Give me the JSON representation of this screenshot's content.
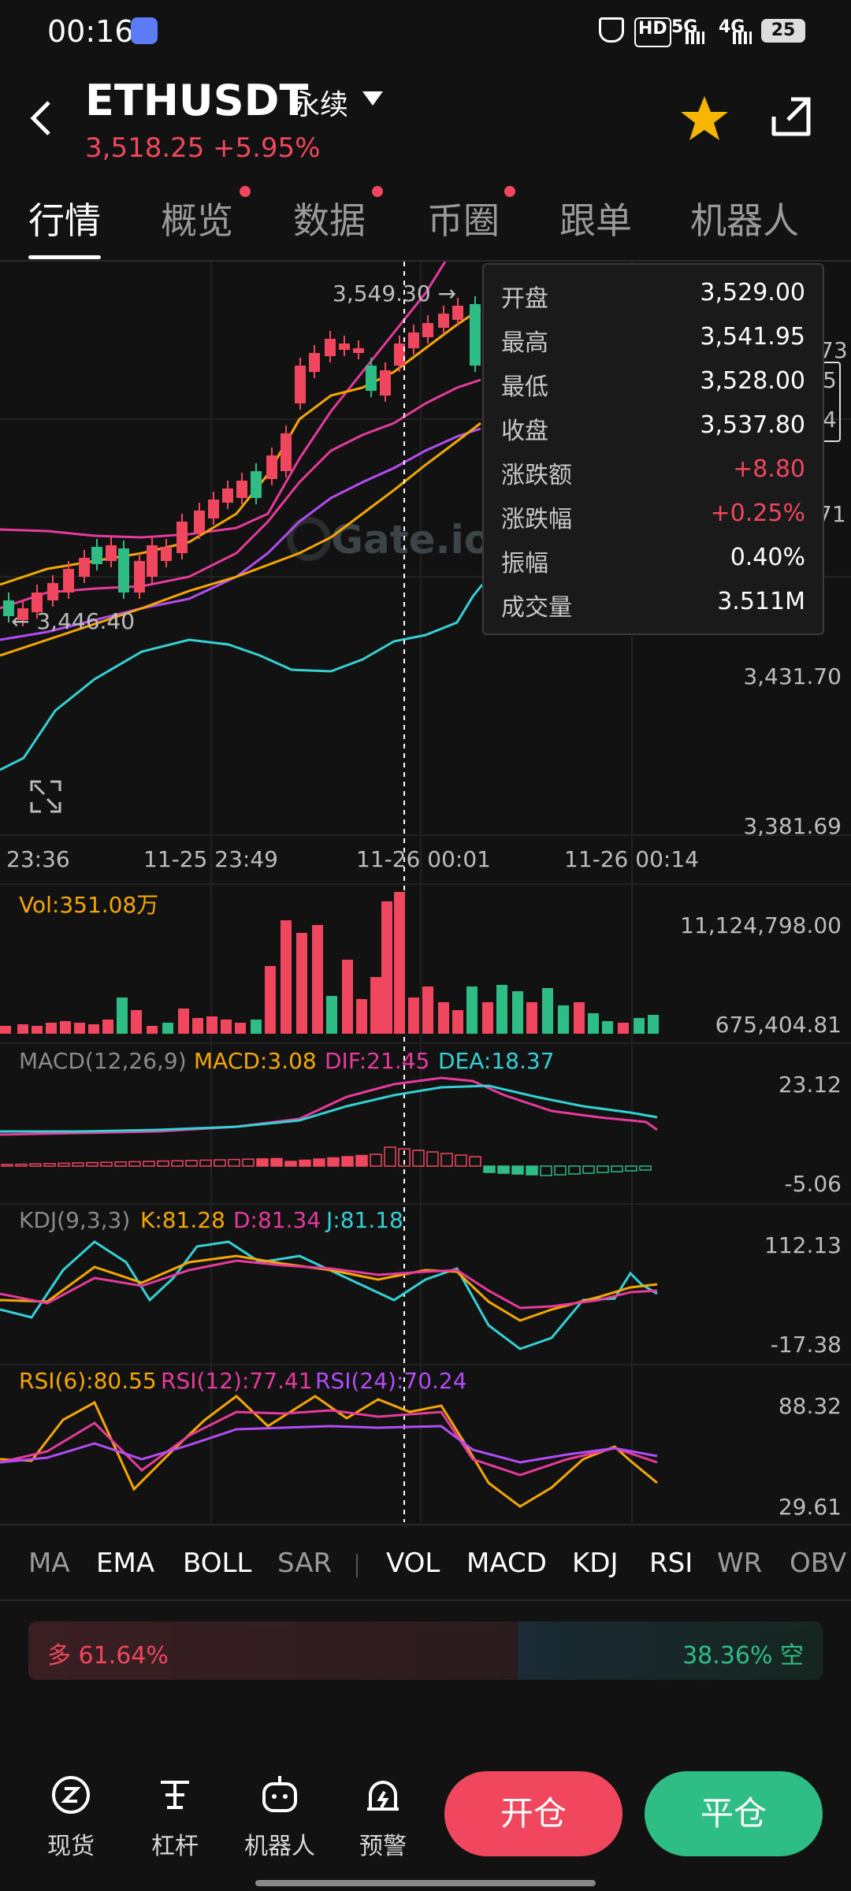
{
  "status_bar": {
    "time": "00:16",
    "battery": "25",
    "net_5g": "5G",
    "net_4g": "4G",
    "hd": "HD"
  },
  "header": {
    "symbol": "ETHUSDT",
    "contract": "永续",
    "price": "3,518.25",
    "change_pct": "+5.95%"
  },
  "tabs": [
    {
      "label": "行情",
      "active": true
    },
    {
      "label": "概览",
      "dot": true
    },
    {
      "label": "数据",
      "dot": true
    },
    {
      "label": "币圈",
      "dot": true
    },
    {
      "label": "跟单"
    },
    {
      "label": "机器人"
    }
  ],
  "main_chart": {
    "high_marker": "3,549.30 →",
    "low_marker": "← 3,446.40",
    "watermark": "Gate.io",
    "price_axis": [
      "3,431.70",
      "3,381.69"
    ],
    "right_partials": [
      "73",
      "5",
      "4",
      "71"
    ],
    "time_labels": [
      "23:36",
      "11-25 23:49",
      "11-26 00:01",
      "11-26 00:14"
    ]
  },
  "tooltip": {
    "rows": [
      {
        "k": "开盘",
        "v": "3,529.00"
      },
      {
        "k": "最高",
        "v": "3,541.95"
      },
      {
        "k": "最低",
        "v": "3,528.00"
      },
      {
        "k": "收盘",
        "v": "3,537.80"
      },
      {
        "k": "涨跌额",
        "v": "+8.80",
        "red": true
      },
      {
        "k": "涨跌幅",
        "v": "+0.25%",
        "red": true
      },
      {
        "k": "振幅",
        "v": "0.40%"
      },
      {
        "k": "成交量",
        "v": "3.511M"
      }
    ]
  },
  "vol": {
    "label": "Vol:351.08万",
    "max": "11,124,798.00",
    "min": "675,404.81"
  },
  "macd": {
    "label": "MACD(12,26,9)",
    "macd": "MACD:3.08",
    "dif": "DIF:21.45",
    "dea": "DEA:18.37",
    "max": "23.12",
    "min": "-5.06"
  },
  "kdj": {
    "label": "KDJ(9,3,3)",
    "k": "K:81.28",
    "d": "D:81.34",
    "j": "J:81.18",
    "max": "112.13",
    "min": "-17.38"
  },
  "rsi": {
    "r6": "RSI(6):80.55",
    "r12": "RSI(12):77.41",
    "r24": "RSI(24):70.24",
    "max": "88.32",
    "min": "29.61"
  },
  "indicators": [
    {
      "label": "MA",
      "dim": true
    },
    {
      "label": "EMA"
    },
    {
      "label": "BOLL"
    },
    {
      "label": "SAR",
      "dim": true
    },
    {
      "label": "VOL"
    },
    {
      "label": "MACD"
    },
    {
      "label": "KDJ"
    },
    {
      "label": "RSI"
    },
    {
      "label": "WR",
      "dim": true
    },
    {
      "label": "OBV",
      "dim": true
    }
  ],
  "long_short": {
    "long": "多 61.64%",
    "short": "38.36% 空",
    "long_fraction": 0.6164
  },
  "bottom_nav": [
    {
      "label": "现货",
      "icon": "spot-icon"
    },
    {
      "label": "杠杆",
      "icon": "leverage-icon"
    },
    {
      "label": "机器人",
      "icon": "robot-icon"
    },
    {
      "label": "预警",
      "icon": "alert-icon"
    }
  ],
  "buttons": {
    "open": "开仓",
    "close": "平仓"
  },
  "colors": {
    "up": "#f0475f",
    "down": "#2ebd85",
    "ma5": "#f7a800",
    "ma10": "#e63b9c",
    "ma30": "#b24cf5",
    "cyan": "#34d1d5"
  }
}
